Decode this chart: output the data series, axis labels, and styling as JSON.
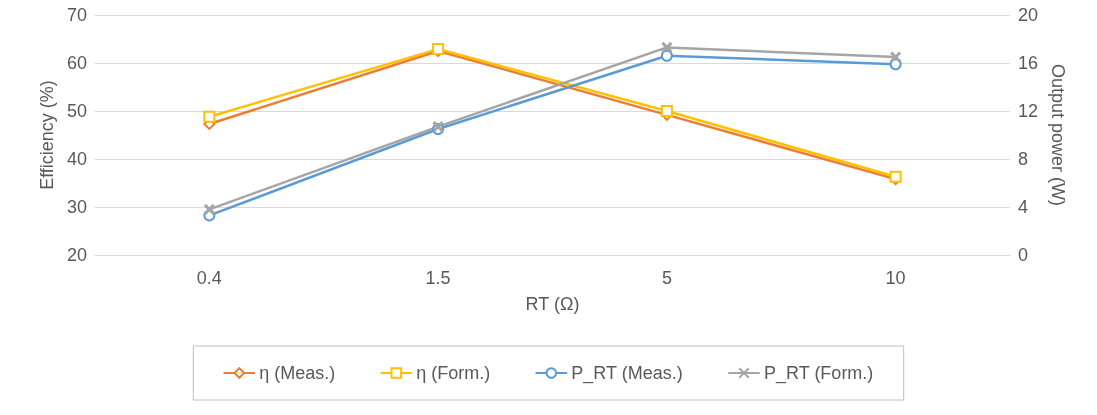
{
  "chart_data": {
    "type": "line",
    "xlabel": "RT (Ω)",
    "ylabel": "Efficiency (%)",
    "y2label": "Output power (W)",
    "categories": [
      "0.4",
      "1.5",
      "5",
      "10"
    ],
    "series": [
      {
        "name": "η (Meas.)",
        "color": "#ed7d31",
        "marker": "diamond",
        "values": [
          47.3,
          62.5,
          49.2,
          35.8
        ]
      },
      {
        "name": "η (Form.)",
        "color": "#ffc000",
        "marker": "square",
        "values": [
          48.8,
          62.9,
          50.0,
          36.3
        ]
      },
      {
        "name": "P_RT (Meas.)",
        "color": "#5b9bd5",
        "marker": "circle",
        "axis": "y2",
        "values": [
          3.3,
          10.5,
          16.6,
          15.9
        ]
      },
      {
        "name": "P_RT (Form.)",
        "color": "#a5a5a5",
        "marker": "cross",
        "axis": "y2",
        "values": [
          3.8,
          10.7,
          17.3,
          16.5
        ]
      }
    ],
    "ylim": [
      20,
      70
    ],
    "yticks": [
      20,
      30,
      40,
      50,
      60,
      70
    ],
    "y2lim": [
      0,
      20
    ],
    "y2ticks": [
      0,
      4,
      8,
      12,
      16,
      20
    ],
    "grid": "y",
    "legend": "bottom",
    "line_style": "solid"
  }
}
